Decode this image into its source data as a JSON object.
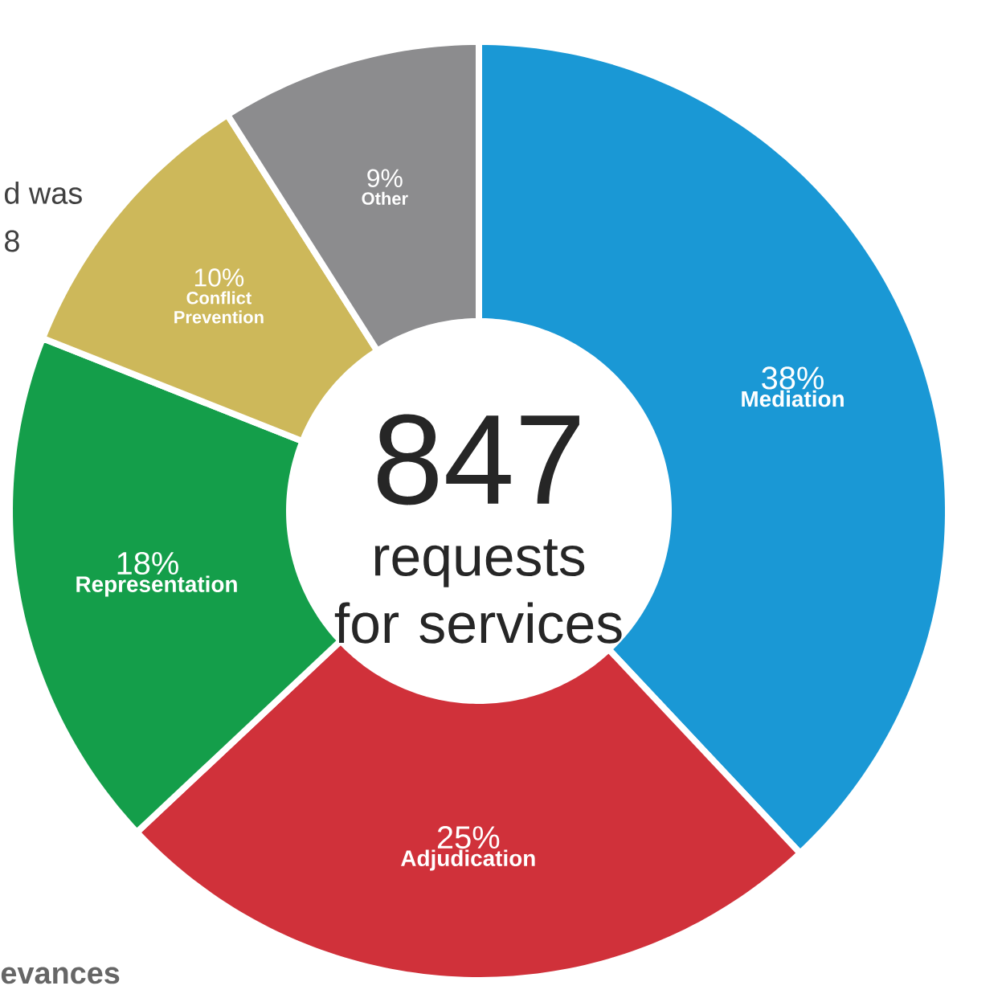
{
  "chart_data": {
    "type": "donut",
    "title": "847",
    "subtitle": "requests for services",
    "categories": [
      "Mediation",
      "Adjudication",
      "Representation",
      "Conflict Prevention",
      "Other"
    ],
    "values": [
      38,
      25,
      18,
      10,
      9
    ],
    "value_labels": [
      "38%",
      "25%",
      "18%",
      "10%",
      "9%"
    ],
    "colors": [
      "#1a98d5",
      "#d0313a",
      "#149e4a",
      "#cdb85a",
      "#8c8c8e"
    ],
    "annotations": [
      "d was",
      "8",
      "evances"
    ]
  }
}
